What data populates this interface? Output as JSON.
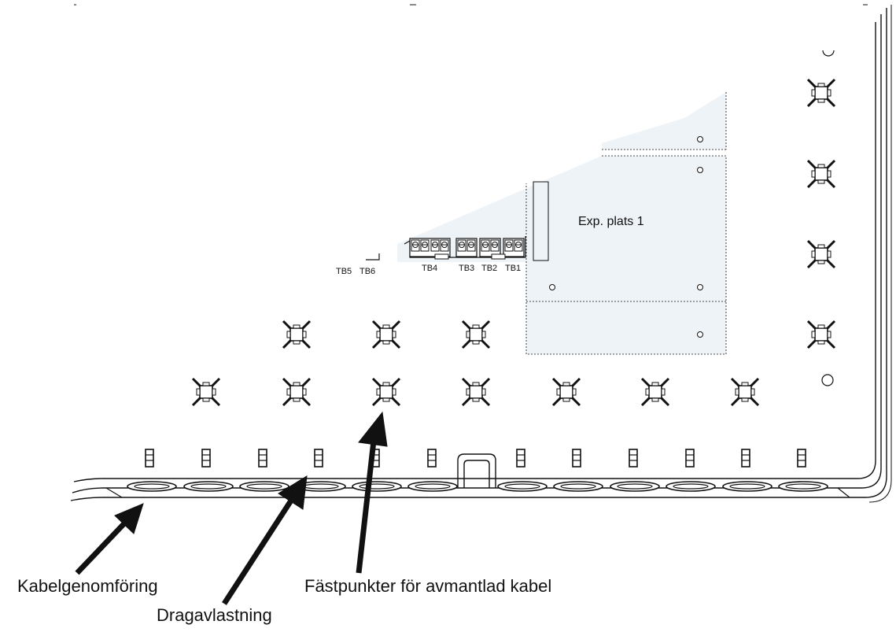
{
  "board": {
    "slot_label": "Exp. plats 1"
  },
  "terminals": {
    "tb5": "TB5",
    "tb6": "TB6",
    "tb4": "TB4",
    "tb3": "TB3",
    "tb2": "TB2",
    "tb1": "TB1"
  },
  "callouts": {
    "cable_entry": "Kabelgenomföring",
    "strain_relief": "Dragavlastning",
    "stripped_cable_points": "Fästpunkter för avmantlad kabel"
  },
  "colors": {
    "board_fill": "#eef3f7",
    "line": "#111111"
  }
}
